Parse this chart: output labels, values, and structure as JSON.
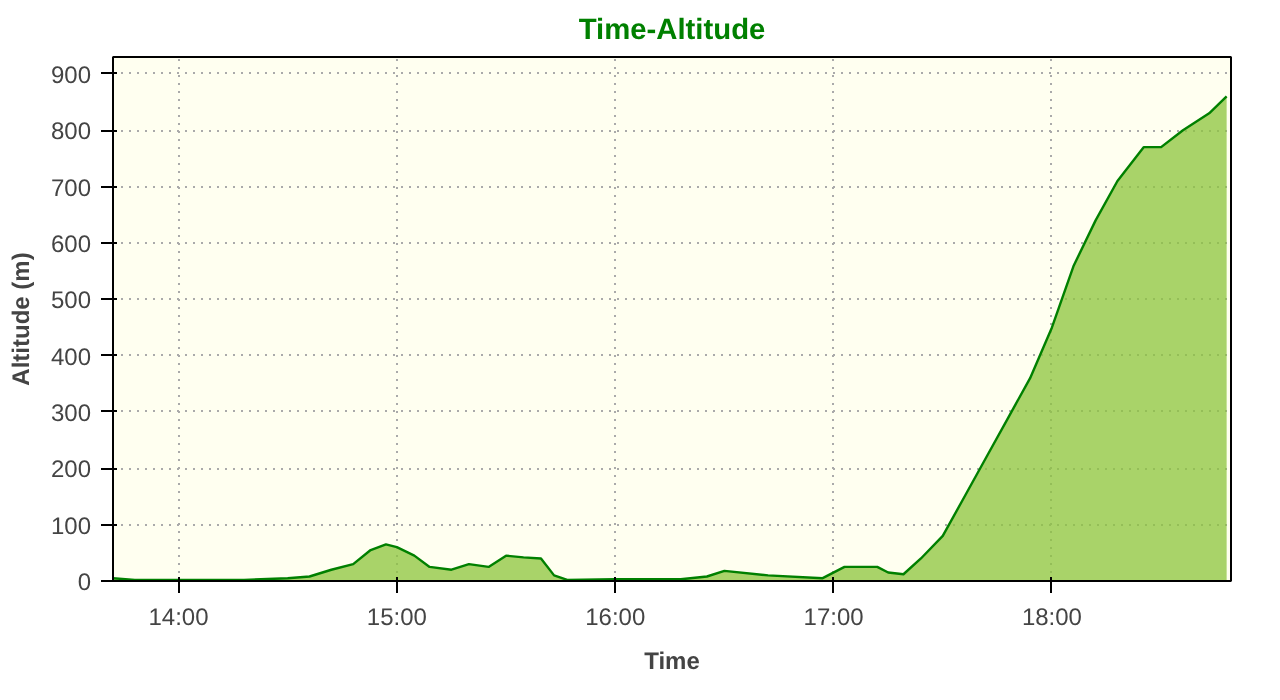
{
  "chart_data": {
    "type": "area",
    "title": "Time-Altitude",
    "xlabel": "Time",
    "ylabel": "Altitude (m)",
    "xlim": [
      13.7,
      18.82
    ],
    "ylim": [
      0,
      930
    ],
    "xticks": [
      {
        "value": 14,
        "label": "14:00"
      },
      {
        "value": 15,
        "label": "15:00"
      },
      {
        "value": 16,
        "label": "16:00"
      },
      {
        "value": 17,
        "label": "17:00"
      },
      {
        "value": 18,
        "label": "18:00"
      }
    ],
    "yticks": [
      0,
      100,
      200,
      300,
      400,
      500,
      600,
      700,
      800,
      900
    ],
    "grid": true,
    "series": [
      {
        "color": "#8cc43c",
        "x": [
          13.7,
          13.8,
          14.0,
          14.3,
          14.5,
          14.6,
          14.7,
          14.8,
          14.88,
          14.95,
          15.0,
          15.08,
          15.15,
          15.25,
          15.33,
          15.42,
          15.5,
          15.58,
          15.66,
          15.72,
          15.78,
          16.0,
          16.3,
          16.42,
          16.5,
          16.7,
          16.95,
          17.05,
          17.2,
          17.25,
          17.32,
          17.4,
          17.5,
          17.6,
          17.7,
          17.8,
          17.9,
          18.0,
          18.1,
          18.2,
          18.3,
          18.42,
          18.5,
          18.6,
          18.72,
          18.8
        ],
        "values": [
          5,
          2,
          2,
          2,
          5,
          8,
          20,
          30,
          55,
          65,
          60,
          45,
          25,
          20,
          30,
          25,
          45,
          42,
          40,
          10,
          2,
          3,
          3,
          8,
          18,
          10,
          5,
          25,
          25,
          15,
          12,
          40,
          80,
          150,
          220,
          290,
          360,
          450,
          560,
          640,
          710,
          770,
          770,
          800,
          830,
          860
        ]
      }
    ]
  }
}
